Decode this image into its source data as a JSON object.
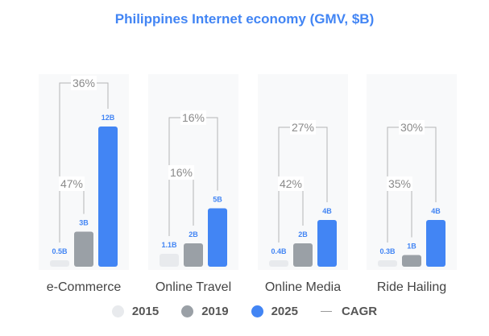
{
  "chart_data": {
    "type": "bar",
    "title": "Philippines Internet economy (GMV, $B)",
    "unit": "B",
    "categories": [
      "e-Commerce",
      "Online Travel",
      "Online Media",
      "Ride Hailing"
    ],
    "series": [
      {
        "name": "2015",
        "values": [
          0.5,
          1.1,
          0.4,
          0.3
        ],
        "labels": [
          "0.5B",
          "1.1B",
          "0.4B",
          "0.3B"
        ],
        "color": "#e8eaed"
      },
      {
        "name": "2019",
        "values": [
          3,
          2,
          2,
          1
        ],
        "labels": [
          "3B",
          "2B",
          "2B",
          "1B"
        ],
        "color": "#9aa0a6"
      },
      {
        "name": "2025",
        "values": [
          12,
          5,
          4,
          4
        ],
        "labels": [
          "12B",
          "5B",
          "4B",
          "4B"
        ],
        "color": "#4285f4"
      }
    ],
    "cagr": {
      "label": "CAGR",
      "2015_2019": [
        "47%",
        "16%",
        "42%",
        "35%"
      ],
      "2019_2025": [
        "36%",
        "16%",
        "27%",
        "30%"
      ]
    },
    "ylim": [
      0,
      12
    ],
    "legend": [
      "2015",
      "2019",
      "2025",
      "CAGR"
    ],
    "legend_position": "bottom"
  },
  "colors": {
    "title": "#4285f4",
    "value_label_2025": "#4285f4",
    "value_label_other": "#4285f4",
    "category_label": "#444444",
    "cagr_text": "#8a8a8a",
    "bracket": "#b5b5b5",
    "background_strip": "#f8f9fa"
  }
}
